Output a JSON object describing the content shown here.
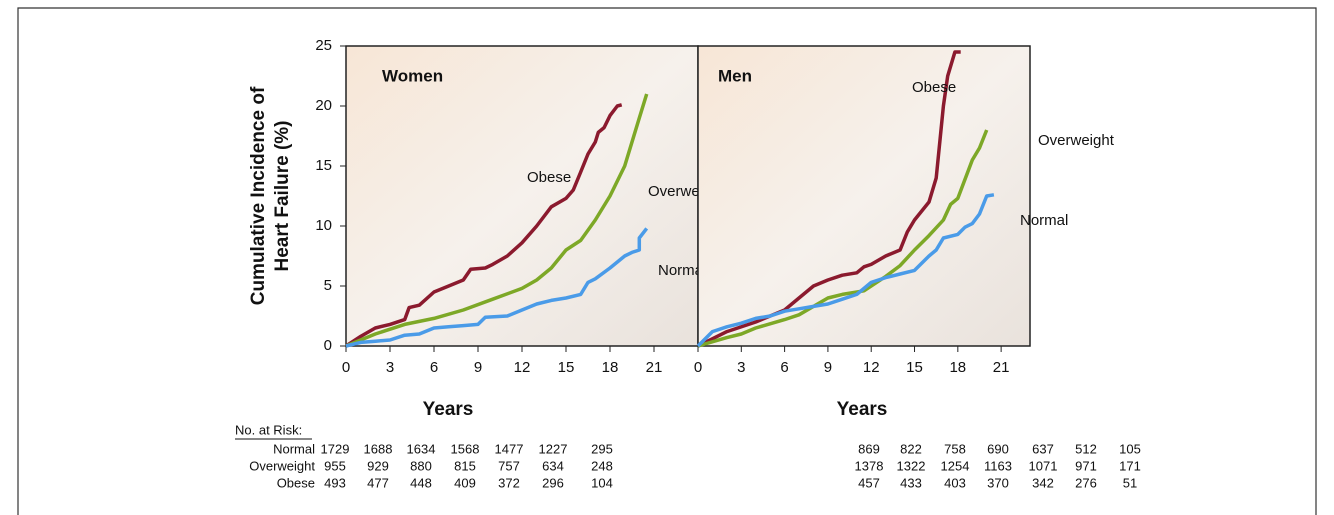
{
  "chart_data": [
    {
      "type": "line",
      "title": "Women",
      "ylabel": [
        "Cumulative Incidence of",
        "Heart Failure (%)"
      ],
      "xlabel": "Years",
      "xlim": [
        0,
        24
      ],
      "ylim": [
        0,
        25
      ],
      "xticks": [
        0,
        3,
        6,
        9,
        12,
        15,
        18,
        21
      ],
      "yticks": [
        0,
        5,
        10,
        15,
        20,
        25
      ],
      "series": [
        {
          "name": "Obese",
          "color": "#8b1a2e",
          "x": [
            0,
            1,
            2,
            3,
            4,
            4.3,
            5,
            6,
            7,
            8,
            8.5,
            9.5,
            10,
            11,
            12,
            13,
            14,
            15,
            15.5,
            16,
            16.5,
            17,
            17.2,
            17.6,
            18,
            18.5,
            18.8
          ],
          "values": [
            0,
            0.8,
            1.5,
            1.8,
            2.2,
            3.2,
            3.4,
            4.5,
            5,
            5.5,
            6.4,
            6.5,
            6.8,
            7.5,
            8.6,
            10,
            11.6,
            12.3,
            13,
            14.5,
            16,
            17,
            17.8,
            18.2,
            19.2,
            20,
            20.1
          ]
        },
        {
          "name": "Overweight",
          "color": "#7da827",
          "x": [
            0,
            2,
            4,
            6,
            8,
            10,
            12,
            13,
            14,
            15,
            16,
            17,
            18,
            19,
            20,
            20.5
          ],
          "values": [
            0,
            1,
            1.8,
            2.3,
            3,
            3.9,
            4.8,
            5.5,
            6.5,
            8,
            8.8,
            10.5,
            12.5,
            15,
            19,
            21
          ]
        },
        {
          "name": "Normal",
          "color": "#4a9be8",
          "x": [
            0,
            1,
            2,
            3,
            4,
            5,
            6,
            7,
            8,
            9,
            9.5,
            11,
            12,
            13,
            14,
            15,
            16,
            16.5,
            17,
            18,
            19,
            19.5,
            20,
            20,
            20.5
          ],
          "values": [
            0,
            0.3,
            0.4,
            0.5,
            0.9,
            1,
            1.5,
            1.6,
            1.7,
            1.8,
            2.4,
            2.5,
            3,
            3.5,
            3.8,
            4,
            4.3,
            5.3,
            5.6,
            6.5,
            7.5,
            7.8,
            8,
            9,
            9.8
          ]
        }
      ]
    },
    {
      "type": "line",
      "title": "Men",
      "xlabel": "Years",
      "xlim": [
        0,
        23
      ],
      "ylim": [
        0,
        25
      ],
      "xticks": [
        0,
        3,
        6,
        9,
        12,
        15,
        18,
        21
      ],
      "series": [
        {
          "name": "Obese",
          "color": "#8b1a2e",
          "x": [
            0,
            2,
            4,
            6,
            7,
            8,
            9,
            10,
            11,
            11.5,
            12,
            13,
            14,
            14.5,
            15,
            16,
            16.5,
            17,
            17.3,
            17.8,
            18.2
          ],
          "values": [
            0,
            1.2,
            2,
            3,
            4,
            5,
            5.5,
            5.9,
            6.1,
            6.6,
            6.8,
            7.5,
            8,
            9.5,
            10.5,
            12,
            14,
            20,
            22.5,
            24.5,
            24.5
          ]
        },
        {
          "name": "Overweight",
          "color": "#7da827",
          "x": [
            0,
            2,
            3,
            4,
            6,
            7,
            8,
            9,
            10,
            11.5,
            13,
            14,
            15,
            16,
            17,
            17.5,
            18,
            19,
            19.5,
            20
          ],
          "values": [
            0,
            0.7,
            1,
            1.5,
            2.2,
            2.6,
            3.3,
            4,
            4.3,
            4.6,
            5.8,
            6.7,
            8,
            9.2,
            10.5,
            11.8,
            12.3,
            15.5,
            16.5,
            18
          ]
        },
        {
          "name": "Normal",
          "color": "#4a9be8",
          "x": [
            0,
            1,
            2,
            3,
            4,
            5,
            6,
            7,
            8,
            9,
            10,
            11,
            12,
            13,
            14,
            15,
            16,
            16.5,
            17,
            18,
            18.5,
            19,
            19.5,
            20,
            20.5
          ],
          "values": [
            0,
            1.2,
            1.6,
            1.9,
            2.3,
            2.5,
            2.9,
            3.1,
            3.3,
            3.5,
            3.9,
            4.3,
            5.3,
            5.7,
            6,
            6.3,
            7.5,
            8,
            9,
            9.3,
            9.9,
            10.2,
            11,
            12.5,
            12.6
          ]
        }
      ]
    }
  ],
  "risk_table": {
    "title": "No. at Risk:",
    "rows": [
      {
        "name": "Normal",
        "women": [
          1729,
          1688,
          1634,
          1568,
          1477,
          1227,
          295
        ],
        "men": [
          869,
          822,
          758,
          690,
          637,
          512,
          105
        ]
      },
      {
        "name": "Overweight",
        "women": [
          955,
          929,
          880,
          815,
          757,
          634,
          248
        ],
        "men": [
          1378,
          1322,
          1254,
          1163,
          1071,
          971,
          171
        ]
      },
      {
        "name": "Obese",
        "women": [
          493,
          477,
          448,
          409,
          372,
          296,
          104
        ],
        "men": [
          457,
          433,
          403,
          370,
          342,
          276,
          51
        ]
      }
    ]
  }
}
